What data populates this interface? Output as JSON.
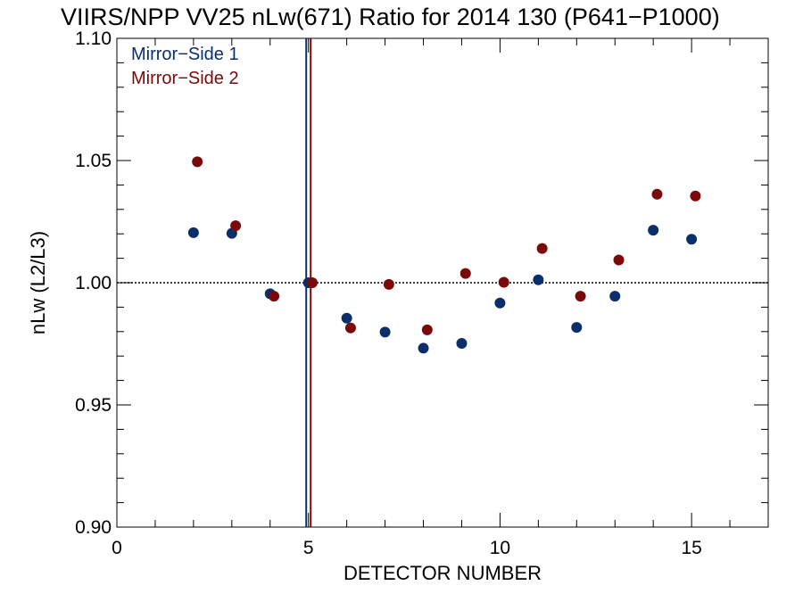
{
  "chart_data": {
    "type": "scatter",
    "title": "VIIRS/NPP VV25 nLw(671) Ratio for 2014 130 (P641−P1000)",
    "xlabel": "DETECTOR NUMBER",
    "ylabel": "nLw (L2/L3)",
    "xlim": [
      0,
      17
    ],
    "ylim": [
      0.9,
      1.1
    ],
    "x_ticks": [
      0,
      5,
      10,
      15
    ],
    "x_tick_labels": [
      "0",
      "5",
      "10",
      "15"
    ],
    "y_ticks": [
      0.9,
      0.95,
      1.0,
      1.05,
      1.1
    ],
    "y_tick_labels": [
      "0.90",
      "0.95",
      "1.00",
      "1.05",
      "1.10"
    ],
    "reference_line": {
      "y": 1.0,
      "style": "dotted"
    },
    "vertical_lines": [
      {
        "x": 5,
        "series": 0
      },
      {
        "x": 5,
        "series": 1
      }
    ],
    "legend_position": "top-left",
    "series": [
      {
        "name": "Mirror−Side 1",
        "color": "#0a2f6b",
        "x": [
          2,
          3,
          4,
          5,
          6,
          7,
          8,
          9,
          10,
          11,
          12,
          13,
          14,
          15
        ],
        "y": [
          1.0205,
          1.0202,
          0.9955,
          1.0,
          0.9855,
          0.9798,
          0.9732,
          0.9752,
          0.9917,
          1.0012,
          0.9817,
          0.9945,
          1.0215,
          1.0178
        ]
      },
      {
        "name": "Mirror−Side 2",
        "color": "#7a0a0a",
        "x": [
          2,
          3,
          4,
          5,
          6,
          7,
          8,
          9,
          10,
          11,
          12,
          13,
          14,
          15
        ],
        "y": [
          1.0495,
          1.0233,
          0.9945,
          1.0,
          0.9815,
          0.9993,
          0.9807,
          1.0038,
          1.0002,
          1.014,
          0.9945,
          1.0093,
          1.0362,
          1.0355
        ]
      }
    ]
  }
}
